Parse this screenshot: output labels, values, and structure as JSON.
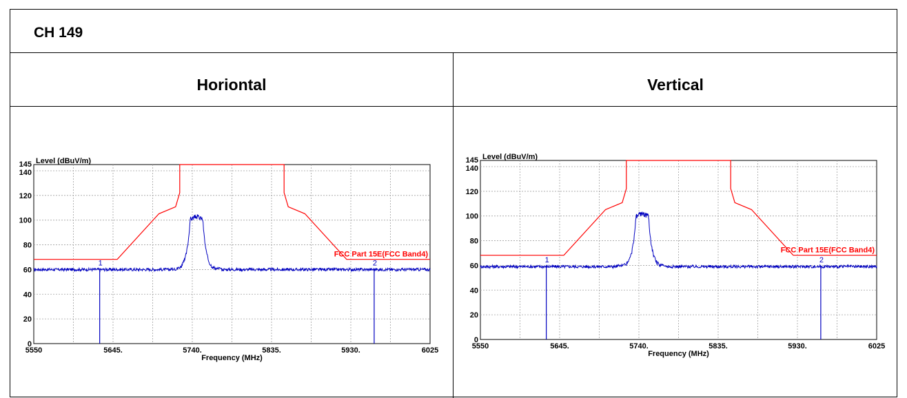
{
  "header": {
    "title": "CH 149"
  },
  "columns": [
    {
      "label": "Horiontal"
    },
    {
      "label": "Vertical"
    }
  ],
  "colors": {
    "limit": "#ff0000",
    "trace": "#0000c0",
    "grid": "#a0a0a0"
  },
  "chart_data": [
    {
      "type": "line",
      "ylabel": "Level (dBuV/m)",
      "xlabel": "Frequency (MHz)",
      "xlim": [
        5550,
        6025
      ],
      "ylim": [
        0,
        145
      ],
      "x_ticks": [
        "5550",
        "5645.",
        "5740.",
        "5835.",
        "5930.",
        "6025"
      ],
      "y_ticks": [
        "0",
        "20",
        "40",
        "60",
        "80",
        "100",
        "120",
        "140",
        "145"
      ],
      "grid": true,
      "limit_line": {
        "name": "FCC Part 15E(FCC Band4)",
        "x": [
          5550,
          5650,
          5700,
          5720,
          5725,
          5725,
          5850,
          5850,
          5855,
          5875,
          5925,
          6025
        ],
        "y": [
          68.2,
          68.2,
          105.2,
          110.8,
          122.2,
          145,
          145,
          122.2,
          110.8,
          105.2,
          68.2,
          68.2
        ]
      },
      "markers": [
        {
          "label": "1",
          "x": 5629
        },
        {
          "label": "2",
          "x": 5958
        }
      ],
      "trace": {
        "noise_floor": 60,
        "peak_center": 5745,
        "peak_level": 105,
        "peak_halfwidth": 8
      }
    },
    {
      "type": "line",
      "ylabel": "Level (dBuV/m)",
      "xlabel": "Frequency (MHz)",
      "xlim": [
        5550,
        6025
      ],
      "ylim": [
        0,
        145
      ],
      "x_ticks": [
        "5550",
        "5645.",
        "5740.",
        "5835.",
        "5930.",
        "6025"
      ],
      "y_ticks": [
        "0",
        "20",
        "40",
        "60",
        "80",
        "100",
        "120",
        "140",
        "145"
      ],
      "grid": true,
      "limit_line": {
        "name": "FCC Part 15E(FCC Band4)",
        "x": [
          5550,
          5650,
          5700,
          5720,
          5725,
          5725,
          5850,
          5850,
          5855,
          5875,
          5925,
          6025
        ],
        "y": [
          68.2,
          68.2,
          105.2,
          110.8,
          122.2,
          145,
          145,
          122.2,
          110.8,
          105.2,
          68.2,
          68.2
        ]
      },
      "markers": [
        {
          "label": "1",
          "x": 5629
        },
        {
          "label": "2",
          "x": 5958
        }
      ],
      "trace": {
        "noise_floor": 59,
        "peak_center": 5744,
        "peak_level": 104,
        "peak_halfwidth": 8
      }
    }
  ]
}
